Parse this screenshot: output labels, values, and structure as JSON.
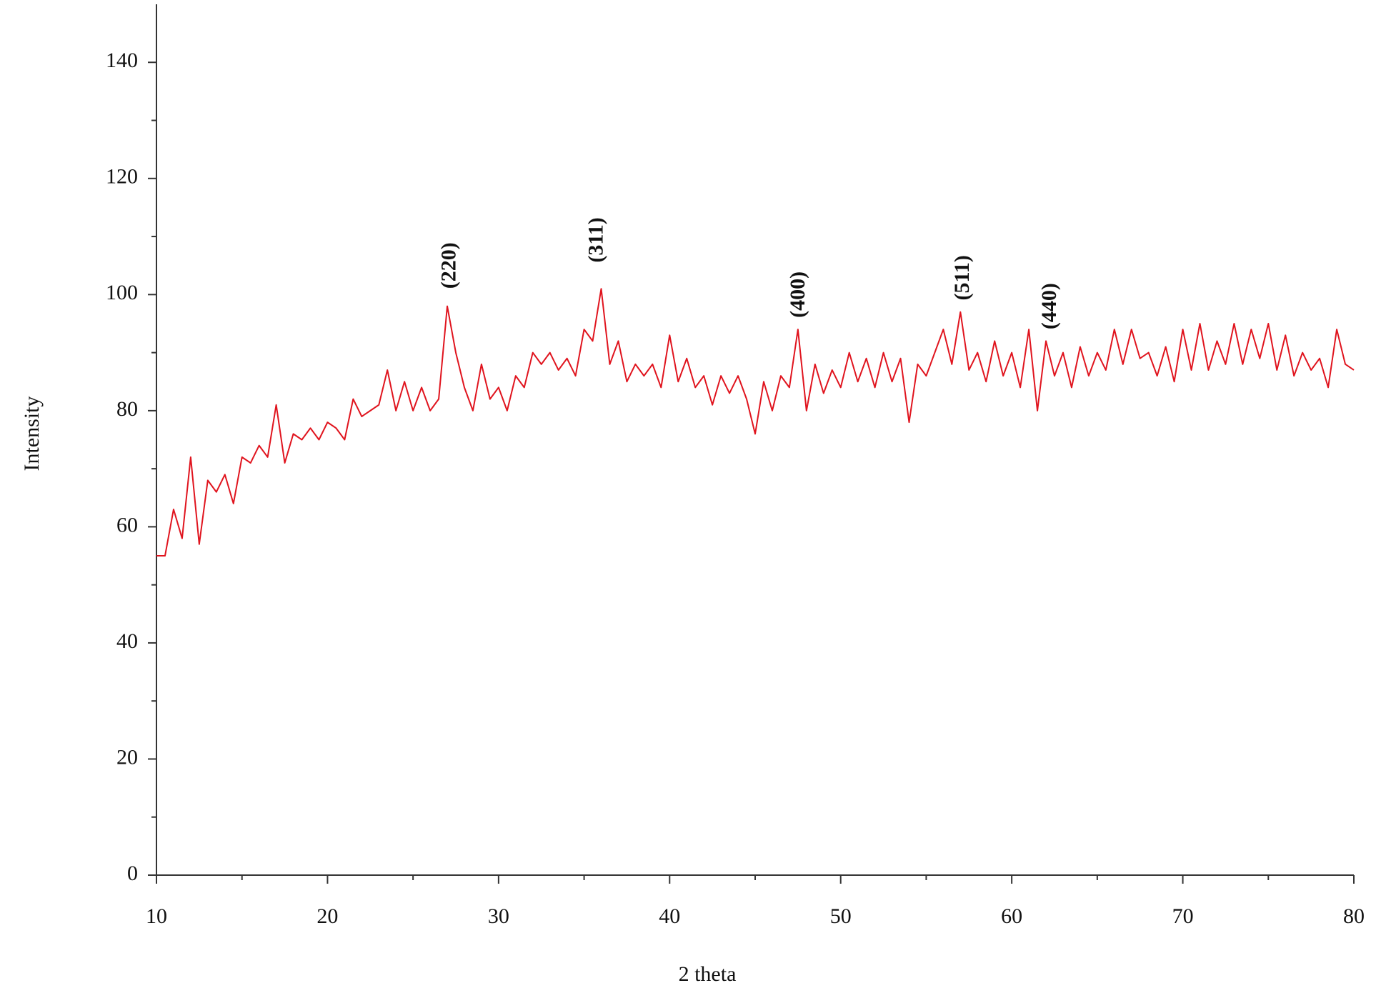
{
  "chart_data": {
    "type": "line",
    "x_label": "2 theta",
    "y_label": "Intensity",
    "x": [
      10,
      10.5,
      11,
      11.5,
      12,
      12.5,
      13,
      13.5,
      14,
      14.5,
      15,
      15.5,
      16,
      16.5,
      17,
      17.5,
      18,
      18.5,
      19,
      19.5,
      20,
      20.5,
      21,
      21.5,
      22,
      22.5,
      23,
      23.5,
      24,
      24.5,
      25,
      25.5,
      26,
      26.5,
      27,
      27.5,
      28,
      28.5,
      29,
      29.5,
      30,
      30.5,
      31,
      31.5,
      32,
      32.5,
      33,
      33.5,
      34,
      34.5,
      35,
      35.5,
      36,
      36.5,
      37,
      37.5,
      38,
      38.5,
      39,
      39.5,
      40,
      40.5,
      41,
      41.5,
      42,
      42.5,
      43,
      43.5,
      44,
      44.5,
      45,
      45.5,
      46,
      46.5,
      47,
      47.5,
      48,
      48.5,
      49,
      49.5,
      50,
      50.5,
      51,
      51.5,
      52,
      52.5,
      53,
      53.5,
      54,
      54.5,
      55,
      55.5,
      56,
      56.5,
      57,
      57.5,
      58,
      58.5,
      59,
      59.5,
      60,
      60.5,
      61,
      61.5,
      62,
      62.5,
      63,
      63.5,
      64,
      64.5,
      65,
      65.5,
      66,
      66.5,
      67,
      67.5,
      68,
      68.5,
      69,
      69.5,
      70,
      70.5,
      71,
      71.5,
      72,
      72.5,
      73,
      73.5,
      74,
      74.5,
      75,
      75.5,
      76,
      76.5,
      77,
      77.5,
      78,
      78.5,
      79,
      79.5,
      80
    ],
    "series": [
      {
        "color": "#e0141e",
        "values": [
          55,
          55,
          63,
          58,
          72,
          57,
          68,
          66,
          69,
          64,
          72,
          71,
          74,
          72,
          81,
          71,
          76,
          75,
          77,
          75,
          78,
          77,
          75,
          82,
          79,
          80,
          81,
          87,
          80,
          85,
          80,
          84,
          80,
          82,
          98,
          90,
          84,
          80,
          88,
          82,
          84,
          80,
          86,
          84,
          90,
          88,
          90,
          87,
          89,
          86,
          94,
          92,
          101,
          88,
          92,
          85,
          88,
          86,
          88,
          84,
          93,
          85,
          89,
          84,
          86,
          81,
          86,
          83,
          86,
          82,
          76,
          85,
          80,
          86,
          84,
          94,
          80,
          88,
          83,
          87,
          84,
          90,
          85,
          89,
          84,
          90,
          85,
          89,
          78,
          88,
          86,
          90,
          94,
          88,
          97,
          87,
          90,
          85,
          92,
          86,
          90,
          84,
          94,
          80,
          92,
          86,
          90,
          84,
          91,
          86,
          90,
          87,
          94,
          88,
          94,
          89,
          90,
          86,
          91,
          85,
          94,
          87,
          95,
          87,
          92,
          88,
          95,
          88,
          94,
          89,
          95,
          87,
          93,
          86,
          90,
          87,
          89,
          84,
          94,
          88,
          87
        ]
      }
    ],
    "annotations": [
      {
        "text": "(220)",
        "x": 27.2,
        "y": 101
      },
      {
        "text": "(311)",
        "x": 35.8,
        "y": 105.5
      },
      {
        "text": "(400)",
        "x": 47.6,
        "y": 96
      },
      {
        "text": "(511)",
        "x": 57.2,
        "y": 99
      },
      {
        "text": "(440)",
        "x": 62.3,
        "y": 94
      }
    ],
    "xlim": [
      10,
      80
    ],
    "xticks": [
      10,
      20,
      30,
      40,
      50,
      60,
      70,
      80
    ],
    "ylim": [
      0,
      150
    ],
    "yticks": [
      0,
      20,
      40,
      60,
      80,
      100,
      120,
      140
    ],
    "grid": false
  }
}
